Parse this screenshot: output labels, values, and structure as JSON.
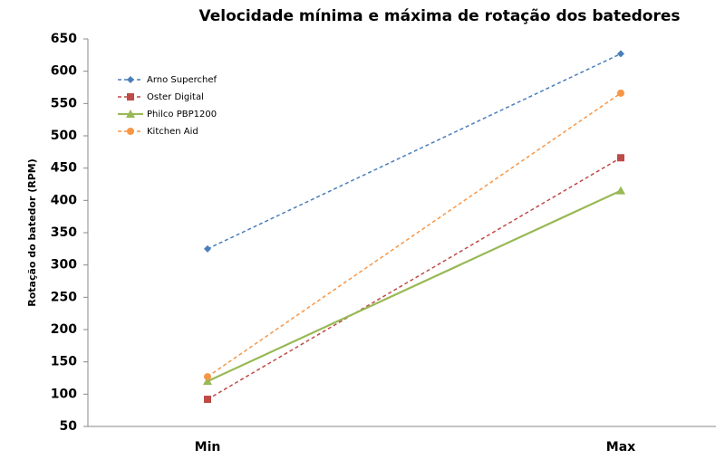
{
  "chart_data": {
    "type": "line",
    "title": "Velocidade mínima e máxima de rotação dos batedores",
    "y_label": "Rotação do batedor (RPM)",
    "categories": [
      "Min",
      "Max"
    ],
    "series": [
      {
        "name": "Arno Superchef",
        "color": "#4a7ebb",
        "dashed": true,
        "marker": "diamond",
        "values": [
          325,
          627
        ]
      },
      {
        "name": "Oster Digital",
        "color": "#be4b48",
        "dashed": true,
        "marker": "square",
        "values": [
          92,
          466
        ]
      },
      {
        "name": "Philco PBP1200",
        "color": "#98b954",
        "dashed": false,
        "marker": "triangle",
        "values": [
          120,
          415
        ]
      },
      {
        "name": "Kitchen Aid",
        "color": "#f79646",
        "dashed": true,
        "marker": "circle",
        "values": [
          127,
          566
        ]
      }
    ],
    "ylim": [
      50,
      650
    ],
    "yticks": [
      50,
      100,
      150,
      200,
      250,
      300,
      350,
      400,
      450,
      500,
      550,
      600,
      650
    ],
    "grid": false,
    "legend": "top-left"
  }
}
